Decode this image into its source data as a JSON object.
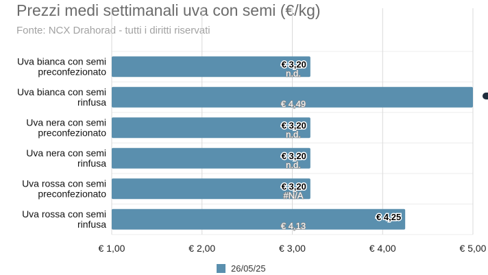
{
  "title": "Prezzi medi settimanali uva con semi (€/kg)",
  "subtitle": "Fonte: NCX Drahorad - tutti i diritti riservati",
  "chart_data": {
    "type": "bar",
    "orientation": "horizontal",
    "categories": [
      [
        "Uva bianca con semi",
        "preconfezionato"
      ],
      [
        "Uva bianca con semi",
        "rinfusa"
      ],
      [
        "Uva nera con semi",
        "preconfezionato"
      ],
      [
        "Uva nera con semi",
        "rinfusa"
      ],
      [
        "Uva rossa con semi",
        "preconfezionato"
      ],
      [
        "Uva rossa con semi",
        "rinfusa"
      ]
    ],
    "series": [
      {
        "name": "26/05/25",
        "color": "#5a8fae",
        "values": [
          3.2,
          5.0,
          3.2,
          3.2,
          3.2,
          4.25
        ]
      }
    ],
    "value_labels": [
      "€ 3,20",
      "",
      "€ 3,20",
      "€ 3,20",
      "€ 3,20",
      "€ 4,25"
    ],
    "secondary_labels": [
      "n.d.",
      "€ 4,49",
      "n.d.",
      "n.d.",
      "#N/A",
      "€ 4,13"
    ],
    "xlim": [
      1,
      5
    ],
    "xticks": [
      1,
      2,
      3,
      4,
      5
    ],
    "xtick_labels": [
      "€ 1,00",
      "€ 2,00",
      "€ 3,00",
      "€ 4,00",
      "€ 5,00"
    ],
    "grid": true,
    "legend": "bottom"
  }
}
